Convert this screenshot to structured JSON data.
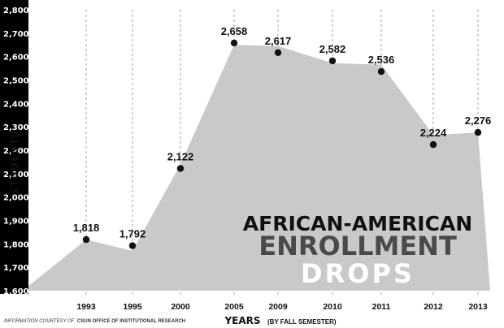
{
  "chart_data": {
    "type": "area",
    "title": "AFRICAN-AMERICAN ENROLLMENT DROPS",
    "title_lines": [
      "AFRICAN-AMERICAN",
      "ENROLLMENT",
      "DROPS"
    ],
    "ylabel": "STUDENTS",
    "xlabel": "YEARS",
    "xlabel_note": "(BY FALL SEMESTER)",
    "ylim": [
      1600,
      2800
    ],
    "yticks": [
      "1,600",
      "1,700",
      "1,800",
      "1,900",
      "2,000",
      "2,100",
      "2,200",
      "2,300",
      "2,400",
      "2,500",
      "2,600",
      "2,700",
      "2,800"
    ],
    "categories": [
      "1993",
      "1995",
      "2000",
      "2005",
      "2009",
      "2010",
      "2011",
      "2012",
      "2013"
    ],
    "values": [
      1818,
      1792,
      2122,
      2658,
      2617,
      2582,
      2536,
      2224,
      2276
    ],
    "data_labels": [
      "1,818",
      "1,792",
      "2,122",
      "2,658",
      "2,617",
      "2,582",
      "2,536",
      "2,224",
      "2,276"
    ],
    "area_values": [
      1818,
      1770,
      2140,
      2650,
      2645,
      2572,
      2565,
      2265,
      2276
    ],
    "credit_prefix": "INFORMATION COURTESY OF",
    "credit_source": "CSUN OFFICE OF INSTITUTIONAL RESEARCH",
    "colors": {
      "area": "#c9c9c9",
      "axis_band": "#000000",
      "grid": "#8c8c8c",
      "marker": "#111111",
      "title_dark": "#111111",
      "title_mid": "#4a4a4a",
      "title_light": "#ffffff"
    }
  }
}
